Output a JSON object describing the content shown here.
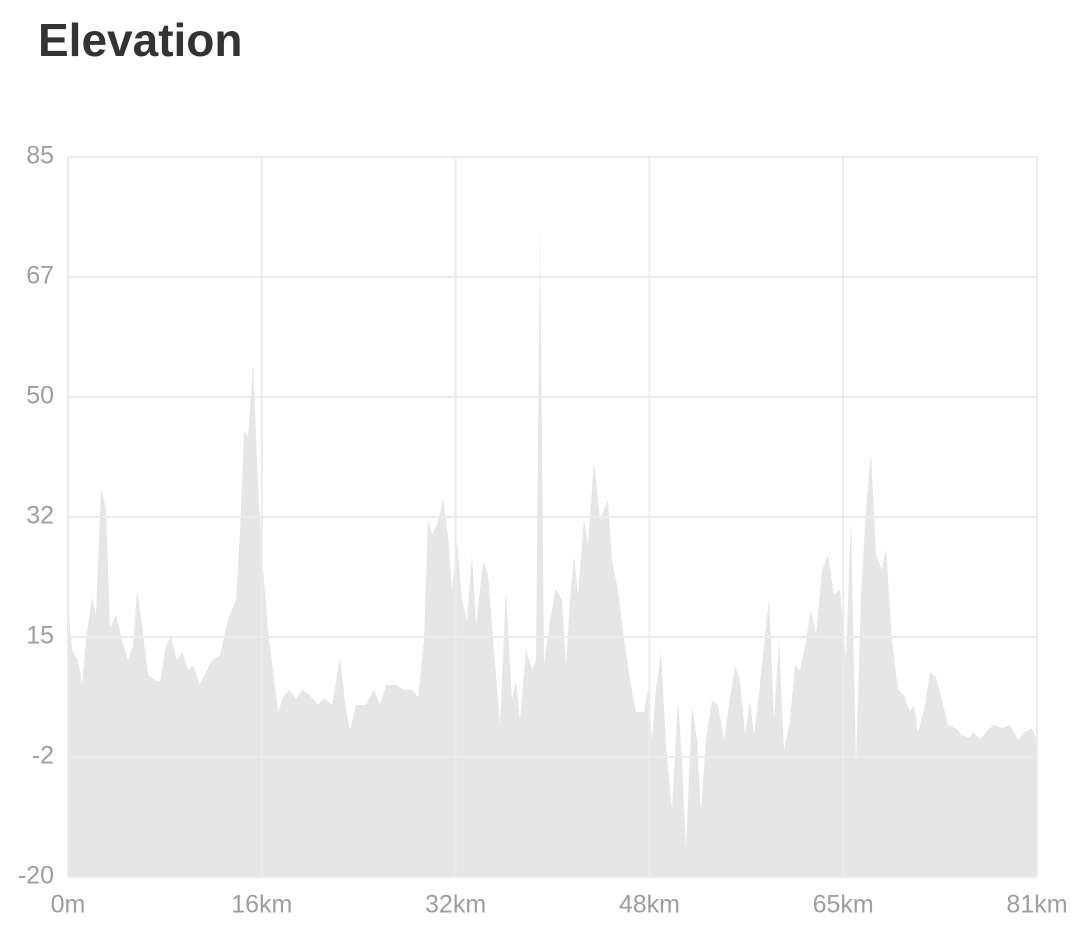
{
  "chart_data": {
    "type": "area",
    "title": "Elevation",
    "color": "#e6e6e6",
    "grid": true,
    "xlim": [
      0,
      81
    ],
    "ylim": [
      -20,
      85
    ],
    "xticks": [
      {
        "value": 0,
        "label": "0m"
      },
      {
        "value": 16.2,
        "label": "16km"
      },
      {
        "value": 32.4,
        "label": "32km"
      },
      {
        "value": 48.6,
        "label": "48km"
      },
      {
        "value": 64.8,
        "label": "65km"
      },
      {
        "value": 81,
        "label": "81km"
      }
    ],
    "yticks": [
      -20,
      {
        "value": -2.5,
        "label": "-2"
      },
      15,
      {
        "value": 32.5,
        "label": "32"
      },
      50,
      {
        "value": 67.5,
        "label": "67"
      },
      85
    ],
    "x": [
      0,
      0.33,
      0.84,
      1.17,
      1.5,
      2.01,
      2.34,
      2.76,
      3.18,
      3.51,
      4.01,
      4.51,
      5.02,
      5.43,
      5.77,
      6.19,
      6.69,
      7.27,
      7.69,
      8.19,
      8.61,
      9.11,
      9.53,
      10.03,
      10.45,
      11.03,
      11.53,
      12.04,
      12.71,
      13.37,
      14.04,
      14.38,
      14.71,
      15.05,
      15.47,
      15.88,
      16.3,
      16.72,
      17.14,
      17.56,
      18.06,
      18.56,
      19.06,
      19.56,
      20.23,
      20.9,
      21.4,
      22.07,
      22.74,
      23.24,
      23.57,
      24.07,
      24.91,
      25.58,
      26.08,
      26.58,
      27.42,
      28.09,
      28.76,
      29.26,
      29.76,
      30.09,
      30.43,
      30.93,
      31.35,
      31.76,
      32.1,
      32.52,
      32.93,
      33.35,
      33.77,
      34.11,
      34.69,
      35.11,
      35.61,
      36.11,
      36.61,
      37.11,
      37.45,
      37.78,
      38.28,
      38.79,
      39.12,
      39.46,
      39.79,
      40.29,
      40.79,
      41.29,
      41.63,
      41.96,
      42.3,
      42.63,
      43.13,
      43.47,
      43.97,
      44.47,
      44.8,
      45.14,
      45.47,
      45.97,
      46.48,
      46.98,
      47.48,
      48.15,
      48.48,
      48.82,
      49.15,
      49.57,
      49.99,
      50.49,
      50.99,
      51.32,
      51.66,
      52.16,
      52.58,
      52.91,
      53.33,
      53.83,
      54.33,
      54.84,
      55.25,
      55.76,
      56.17,
      56.59,
      57.01,
      57.34,
      57.84,
      58.18,
      58.6,
      59.02,
      59.43,
      59.85,
      60.35,
      60.77,
      61.19,
      61.61,
      62.11,
      62.53,
      63.03,
      63.53,
      64.03,
      64.53,
      65.03,
      65.45,
      65.87,
      66.29,
      66.71,
      67.12,
      67.54,
      68.04,
      68.38,
      68.88,
      69.38,
      69.88,
      70.38,
      70.72,
      71.05,
      71.56,
      72.06,
      72.56,
      73.06,
      73.56,
      74.23,
      74.73,
      75.23,
      75.73,
      76.23,
      76.9,
      77.41,
      78.07,
      78.74,
      79.41,
      79.91,
      80.58,
      81
    ],
    "values": [
      19.7,
      13.1,
      11.6,
      8,
      14.6,
      20.8,
      18.2,
      36.7,
      33.8,
      16.3,
      18.2,
      14.6,
      11.6,
      13.8,
      21.9,
      16.7,
      9.5,
      8.7,
      8.4,
      13.8,
      15,
      11.6,
      12.8,
      10.2,
      10.9,
      8,
      9.9,
      11.6,
      12.4,
      17.5,
      20.4,
      30.6,
      44.9,
      44.3,
      54.8,
      37.2,
      25.1,
      16,
      10.2,
      4.1,
      6.5,
      7.3,
      5.8,
      7.3,
      6.5,
      5.1,
      6.1,
      5.1,
      12,
      4.4,
      1.4,
      5.1,
      5.1,
      7.3,
      5.1,
      8,
      8,
      7.3,
      7.3,
      6.2,
      14.6,
      32.1,
      29.9,
      31.8,
      35,
      29.9,
      21.9,
      29.1,
      20.4,
      17.5,
      27,
      16.7,
      26,
      24.1,
      13.1,
      2.2,
      21.9,
      5.8,
      8.7,
      2.9,
      13.1,
      10.2,
      11.6,
      74.6,
      10.9,
      17.5,
      22.1,
      20.4,
      10.9,
      20.4,
      27,
      21.1,
      32.1,
      28.5,
      40.8,
      32.1,
      33.5,
      35,
      26.2,
      21.9,
      14.6,
      8.7,
      4.1,
      4.1,
      7.3,
      0,
      7.3,
      12.8,
      -0.8,
      -10.2,
      5.8,
      -2.9,
      -15.8,
      5.1,
      0,
      -10.5,
      0,
      5.8,
      5.1,
      0,
      5.1,
      10.9,
      8.7,
      0.7,
      5.8,
      0.7,
      8,
      13.8,
      20.7,
      2.9,
      14.6,
      -1.5,
      2.9,
      10.9,
      10.2,
      13.8,
      18.9,
      15.3,
      24.8,
      27,
      21.1,
      21.9,
      11.6,
      32.1,
      -3.7,
      21.1,
      33.8,
      41.9,
      27,
      24.8,
      28,
      14.6,
      7.3,
      6.5,
      4.1,
      5.1,
      1.1,
      4.4,
      9.9,
      9.1,
      5.8,
      2.2,
      1.7,
      0.7,
      0.3,
      1,
      0,
      1.5,
      2.2,
      1.7,
      2.2,
      0,
      1.1,
      1.7,
      0
    ]
  }
}
